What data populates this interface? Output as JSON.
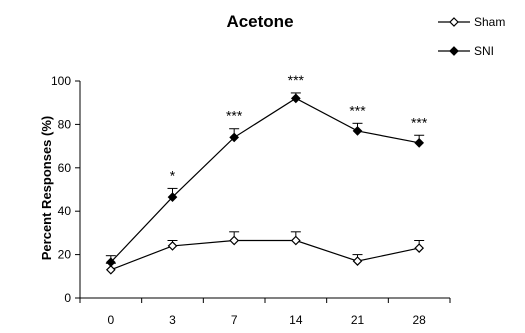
{
  "chart_data": {
    "type": "line",
    "title": "Acetone",
    "ylabel": "Percent Responses (%)",
    "xlabel": "",
    "categories": [
      "0",
      "3",
      "7",
      "14",
      "21",
      "28"
    ],
    "ylim": [
      0,
      100
    ],
    "yticks": [
      0,
      20,
      40,
      60,
      80,
      100
    ],
    "grid": false,
    "legend_position": "top-right",
    "series": [
      {
        "name": "Sham",
        "marker": "open-diamond",
        "color": "#000000",
        "values": [
          13,
          24,
          26.5,
          26.5,
          17,
          23
        ],
        "errors": [
          3,
          2.5,
          4,
          4,
          3,
          3.5
        ]
      },
      {
        "name": "SNI",
        "marker": "filled-diamond",
        "color": "#000000",
        "values": [
          16.5,
          46.5,
          74,
          92,
          77,
          71.5
        ],
        "errors": [
          3,
          4,
          4,
          2.5,
          3.5,
          3.5
        ]
      }
    ],
    "annotations": [
      "",
      "*",
      "***",
      "***",
      "***",
      "***"
    ]
  }
}
